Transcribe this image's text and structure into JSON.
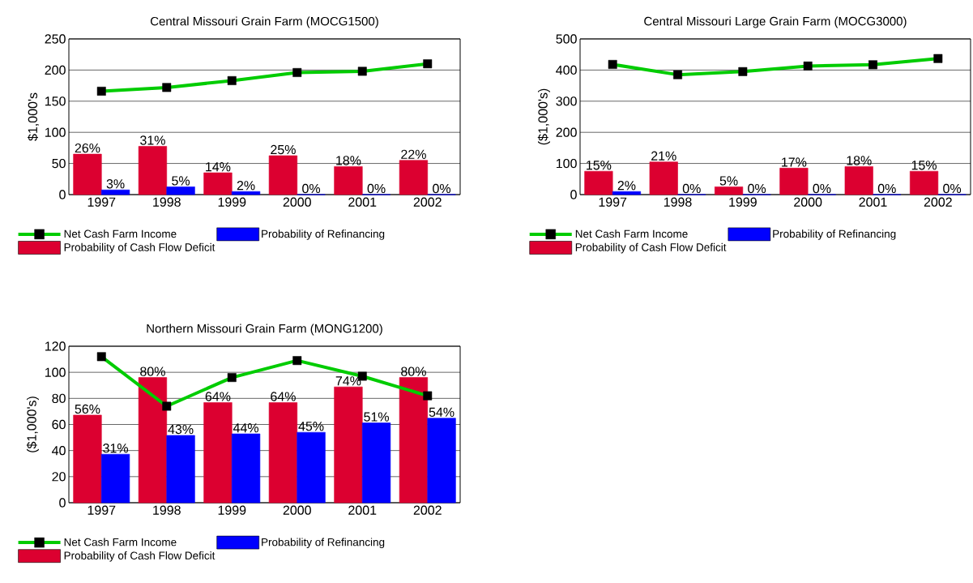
{
  "chart_data": [
    {
      "type": "bar",
      "title": "Central Missouri Grain Farm (MOCG1500)",
      "ylabel": "$1,000's",
      "categories": [
        "1997",
        "1998",
        "1999",
        "2000",
        "2001",
        "2002"
      ],
      "ylim": [
        0,
        250
      ],
      "yticks": [
        0,
        50,
        100,
        150,
        200,
        250
      ],
      "y2lim": [
        0,
        100
      ],
      "grid": "y",
      "legend": "bottom",
      "series": [
        {
          "name": "Probability of Cash Flow Deficit",
          "color": "#dc0030",
          "axis": "y2",
          "values": [
            26,
            31,
            14,
            25,
            18,
            22
          ],
          "value_labels": [
            "26%",
            "31%",
            "14%",
            "25%",
            "18%",
            "22%"
          ]
        },
        {
          "name": "Probability of Refinancing",
          "color": "#0000ff",
          "axis": "y2",
          "values": [
            3,
            5,
            2,
            0,
            0,
            0
          ],
          "value_labels": [
            "3%",
            "5%",
            "2%",
            "0%",
            "0%",
            "0%"
          ]
        },
        {
          "name": "Net Cash Farm Income",
          "type": "line",
          "color": "#00cc00",
          "marker": "square",
          "values": [
            166,
            172,
            183,
            196,
            198,
            210
          ]
        }
      ]
    },
    {
      "type": "bar",
      "title": "Central Missouri Large Grain Farm (MOCG3000)",
      "ylabel": "($1,000's)",
      "categories": [
        "1997",
        "1998",
        "1999",
        "2000",
        "2001",
        "2002"
      ],
      "ylim": [
        0,
        500
      ],
      "yticks": [
        0,
        100,
        200,
        300,
        400,
        500
      ],
      "y2lim": [
        0,
        100
      ],
      "grid": "y",
      "legend": "bottom",
      "series": [
        {
          "name": "Probability of Cash Flow Deficit",
          "color": "#dc0030",
          "axis": "y2",
          "values": [
            15,
            21,
            5,
            17,
            18,
            15
          ],
          "value_labels": [
            "15%",
            "21%",
            "5%",
            "17%",
            "18%",
            "15%"
          ]
        },
        {
          "name": "Probability of Refinancing",
          "color": "#0000ff",
          "axis": "y2",
          "values": [
            2,
            0,
            0,
            0,
            0,
            0
          ],
          "value_labels": [
            "2%",
            "0%",
            "0%",
            "0%",
            "0%",
            "0%"
          ]
        },
        {
          "name": "Net Cash Farm Income",
          "type": "line",
          "color": "#00cc00",
          "marker": "square",
          "values": [
            418,
            385,
            395,
            413,
            417,
            437
          ]
        }
      ]
    },
    {
      "type": "bar",
      "title": "Northern Missouri Grain Farm (MONG1200)",
      "ylabel": "($1,000's)",
      "categories": [
        "1997",
        "1998",
        "1999",
        "2000",
        "2001",
        "2002"
      ],
      "ylim": [
        0,
        120
      ],
      "yticks": [
        0,
        20,
        40,
        60,
        80,
        100,
        120
      ],
      "y2lim": [
        0,
        100
      ],
      "grid": "y",
      "legend": "bottom",
      "series": [
        {
          "name": "Probability of Cash Flow Deficit",
          "color": "#dc0030",
          "axis": "y2",
          "values": [
            56,
            80,
            64,
            64,
            74,
            80
          ],
          "value_labels": [
            "56%",
            "80%",
            "64%",
            "64%",
            "74%",
            "80%"
          ]
        },
        {
          "name": "Probability of Refinancing",
          "color": "#0000ff",
          "axis": "y2",
          "values": [
            31,
            43,
            44,
            45,
            51,
            54
          ],
          "value_labels": [
            "31%",
            "43%",
            "44%",
            "45%",
            "51%",
            "54%"
          ]
        },
        {
          "name": "Net Cash Farm Income",
          "type": "line",
          "color": "#00cc00",
          "marker": "square",
          "values": [
            112,
            74,
            96,
            109,
            97,
            82
          ]
        }
      ]
    }
  ]
}
